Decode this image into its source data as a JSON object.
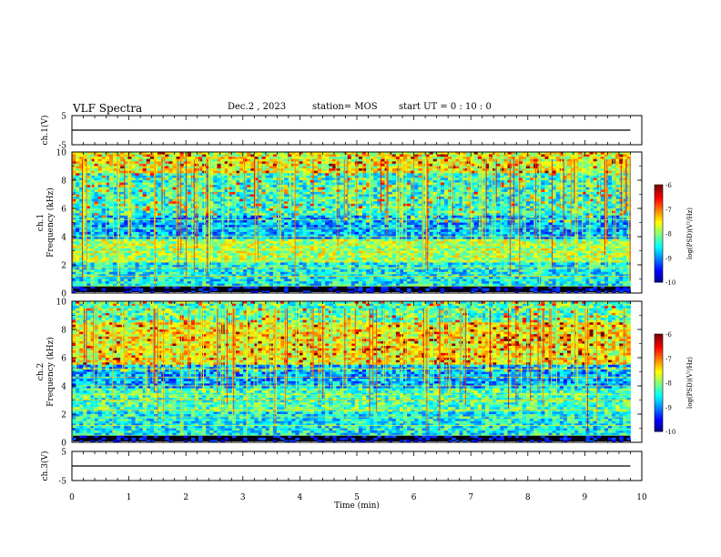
{
  "header": {
    "title": "VLF Spectra",
    "date": "Dec.2 , 2023",
    "station": "station= MOS",
    "start": "start UT =   0 : 10 : 0"
  },
  "chart_data": [
    {
      "type": "line",
      "ylabel": "ch.1(V)",
      "ylim": [
        -5,
        5
      ],
      "yticks": [
        "5",
        "-5"
      ],
      "x": [
        0,
        9.8
      ],
      "y": [
        0,
        0
      ]
    },
    {
      "type": "heatmap",
      "ylabel": "ch.1\nFrequency (kHz)",
      "ylim": [
        0,
        10
      ],
      "yticks": [
        "0",
        "2",
        "4",
        "6",
        "8",
        "10"
      ],
      "colorbar": {
        "label": "log(PSD)(V²/Hz)",
        "range": [
          -10,
          -6
        ],
        "ticks": [
          "-6",
          "-7",
          "-8",
          "-9",
          "-10"
        ]
      }
    },
    {
      "type": "heatmap",
      "ylabel": "ch.2\nFrequency (kHz)",
      "ylim": [
        0,
        10
      ],
      "yticks": [
        "0",
        "2",
        "4",
        "6",
        "8",
        "10"
      ],
      "colorbar": {
        "label": "log(PSD)(V²/Hz)",
        "range": [
          -10,
          -6
        ],
        "ticks": [
          "-6",
          "-7",
          "-8",
          "-9",
          "-10"
        ]
      }
    },
    {
      "type": "line",
      "ylabel": "ch.3(V)",
      "ylim": [
        -5,
        5
      ],
      "yticks": [
        "5",
        "-5"
      ],
      "x": [
        0,
        9.8
      ],
      "y": [
        0,
        0
      ]
    }
  ],
  "xaxis": {
    "label": "Time (min)",
    "range": [
      0,
      10
    ],
    "ticks": [
      "0",
      "1",
      "2",
      "3",
      "4",
      "5",
      "6",
      "7",
      "8",
      "9",
      "10"
    ]
  },
  "colors": {
    "background": "#ffffff",
    "axes": "#000000",
    "spectrogram_bg": "#000010"
  }
}
